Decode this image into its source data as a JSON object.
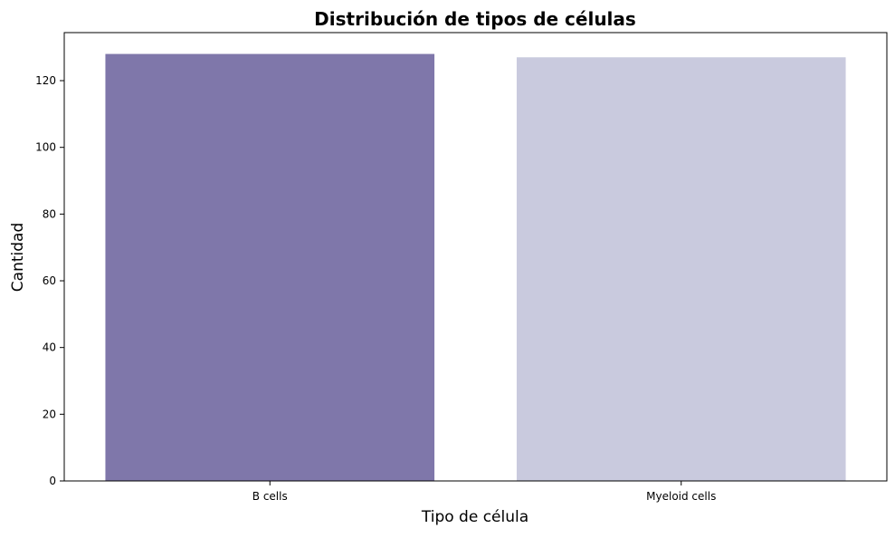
{
  "chart_data": {
    "type": "bar",
    "title": "Distribución de tipos de células",
    "xlabel": "Tipo de célula",
    "ylabel": "Cantidad",
    "categories": [
      "B cells",
      "Myeloid cells"
    ],
    "values": [
      128,
      127
    ],
    "colors": [
      "#7f77aa",
      "#c9cade"
    ],
    "ylim": [
      0,
      134.4
    ],
    "yticks": [
      0,
      20,
      40,
      60,
      80,
      100,
      120
    ],
    "ytick_labels": [
      "0",
      "20",
      "40",
      "60",
      "80",
      "100",
      "120"
    ],
    "grid": false,
    "legend": "none"
  }
}
